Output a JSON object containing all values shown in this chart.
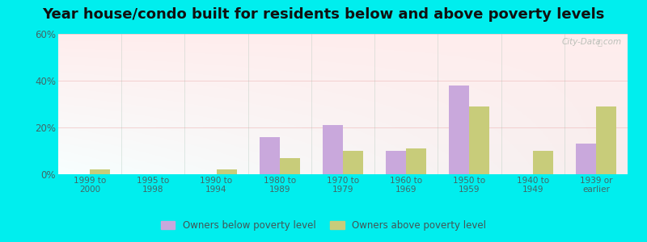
{
  "title": "Year house/condo built for residents below and above poverty levels",
  "categories": [
    "1999 to\n2000",
    "1995 to\n1998",
    "1990 to\n1994",
    "1980 to\n1989",
    "1970 to\n1979",
    "1960 to\n1969",
    "1950 to\n1959",
    "1940 to\n1949",
    "1939 or\nearlier"
  ],
  "below_poverty": [
    0,
    0,
    0,
    16,
    21,
    10,
    38,
    0,
    13
  ],
  "above_poverty": [
    2,
    0,
    2,
    7,
    10,
    11,
    29,
    10,
    29
  ],
  "below_color": "#c9a8dc",
  "above_color": "#c8cc7a",
  "ylim": [
    0,
    60
  ],
  "yticks": [
    0,
    20,
    40,
    60
  ],
  "ytick_labels": [
    "0%",
    "20%",
    "40%",
    "60%"
  ],
  "outer_background": "#00eeee",
  "title_fontsize": 13,
  "legend_below_label": "Owners below poverty level",
  "legend_above_label": "Owners above poverty level",
  "bar_width": 0.32,
  "watermark": "City-Data.com"
}
